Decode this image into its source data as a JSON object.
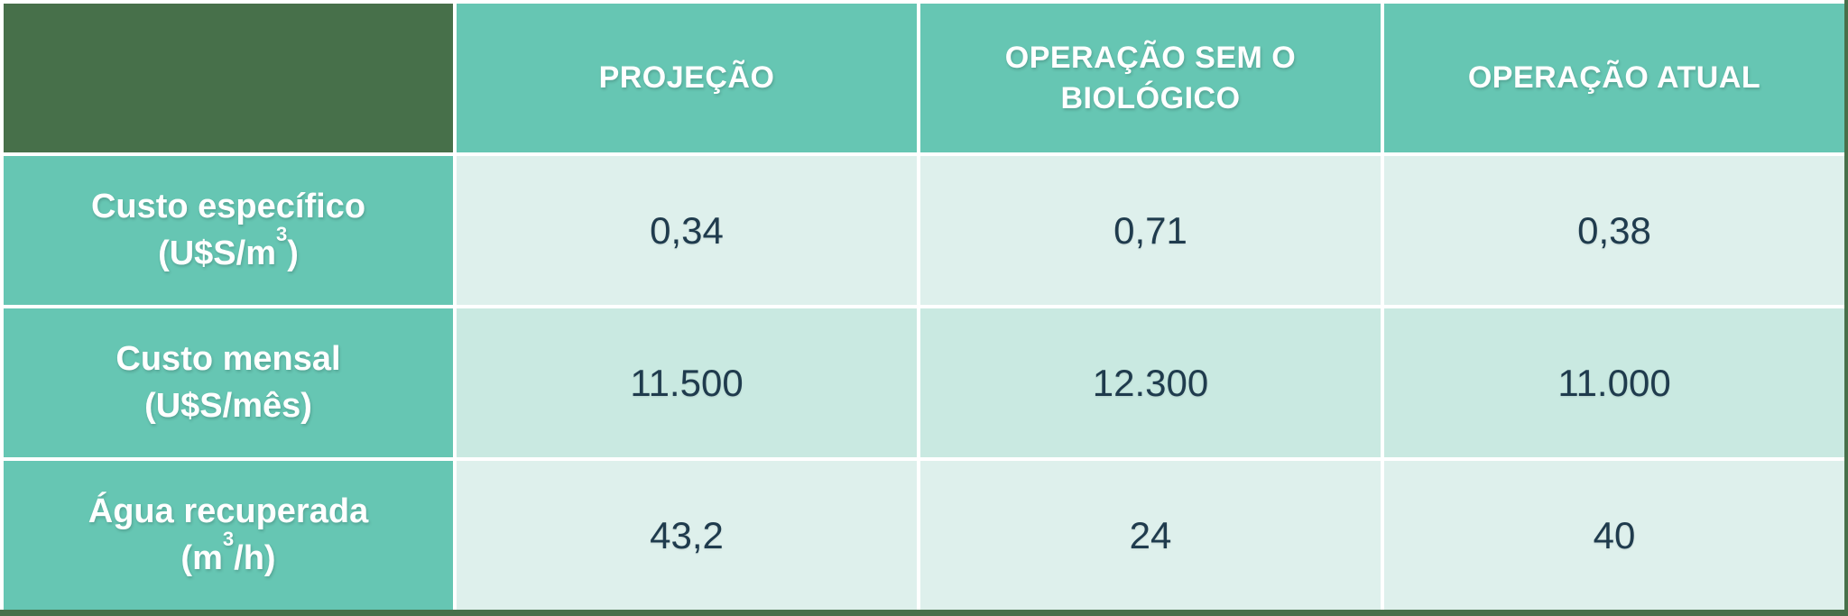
{
  "colors": {
    "dark_green": "#47704A",
    "teal": "#66C6B3",
    "row_light": "#DEF0EC",
    "row_medium": "#C9E9E1",
    "value_text": "#1F3B4D",
    "header_text": "#FFFFFF",
    "grid_lines": "#FFFFFF"
  },
  "table": {
    "corner_label": "",
    "columns": [
      "PROJEÇÃO",
      "OPERAÇÃO SEM O BIOLÓGICO",
      "OPERAÇÃO ATUAL"
    ],
    "rows": [
      {
        "label": "Custo específico",
        "unit_pre": "(U$S/m",
        "unit_sup": "3",
        "unit_post": ")",
        "values": [
          "0,34",
          "0,71",
          "0,38"
        ]
      },
      {
        "label": "Custo mensal",
        "unit_pre": "(U$S/mês)",
        "unit_sup": "",
        "unit_post": "",
        "values": [
          "11.500",
          "12.300",
          "11.000"
        ]
      },
      {
        "label": "Água recuperada",
        "unit_pre": "(m",
        "unit_sup": "3",
        "unit_post": "/h)",
        "values": [
          "43,2",
          "24",
          "40"
        ]
      }
    ]
  },
  "chart_data": {
    "type": "table",
    "categories": [
      "PROJEÇÃO",
      "OPERAÇÃO SEM O BIOLÓGICO",
      "OPERAÇÃO ATUAL"
    ],
    "series": [
      {
        "name": "Custo específico (U$S/m³)",
        "values": [
          0.34,
          0.71,
          0.38
        ],
        "display": [
          "0,34",
          "0,71",
          "0,38"
        ]
      },
      {
        "name": "Custo mensal (U$S/mês)",
        "values": [
          11500,
          12300,
          11000
        ],
        "display": [
          "11.500",
          "12.300",
          "11.000"
        ]
      },
      {
        "name": "Água recuperada (m³/h)",
        "values": [
          43.2,
          24,
          40
        ],
        "display": [
          "43,2",
          "24",
          "40"
        ]
      }
    ],
    "title": "",
    "legend": "none",
    "grid": "white cell separators"
  }
}
